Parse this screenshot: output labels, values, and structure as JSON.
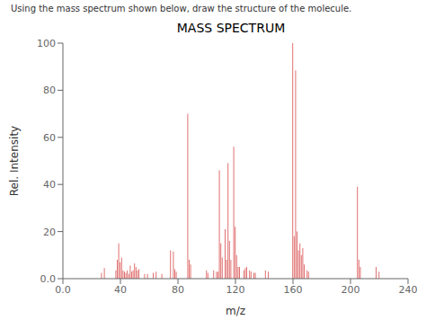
{
  "chart_data": {
    "type": "bar",
    "title": "MASS SPECTRUM",
    "subtitle": "Using the mass spectrum shown below, draw the structure of the molecule.",
    "xlabel": "m/z",
    "ylabel": "Rel. Intensity",
    "x": [
      27,
      29,
      37,
      38,
      39,
      40,
      41,
      42,
      43,
      44,
      45,
      46,
      47,
      48,
      49,
      50,
      51,
      52,
      53,
      57,
      59,
      63,
      65,
      69,
      75,
      77,
      78,
      79,
      87,
      88,
      89,
      100,
      101,
      105,
      107,
      108,
      109,
      110,
      111,
      113,
      114,
      115,
      116,
      117,
      119,
      120,
      121,
      122,
      123,
      126,
      127,
      128,
      130,
      131,
      133,
      134,
      141,
      143,
      160,
      161,
      162,
      163,
      164,
      165,
      166,
      167,
      168,
      170,
      171,
      205,
      206,
      207,
      218,
      220
    ],
    "values": [
      2.5,
      4.5,
      3.5,
      8.0,
      15.0,
      7.0,
      9.0,
      3.5,
      3.0,
      2.5,
      3.5,
      2.0,
      5.5,
      3.0,
      3.5,
      6.5,
      5.0,
      3.5,
      4.0,
      2.0,
      2.0,
      2.5,
      3.0,
      2.0,
      12.0,
      11.5,
      4.0,
      3.0,
      70.0,
      8.0,
      6.0,
      3.5,
      2.5,
      3.5,
      3.0,
      3.0,
      46.0,
      15.0,
      9.0,
      21.0,
      8.0,
      49.0,
      16.0,
      8.0,
      56.0,
      22.0,
      10.0,
      5.0,
      5.0,
      3.5,
      4.5,
      5.0,
      3.5,
      3.0,
      2.5,
      2.5,
      3.5,
      3.0,
      100.0,
      18.0,
      88.5,
      20.0,
      12.0,
      15.0,
      10.0,
      13.0,
      6.0,
      3.5,
      3.0,
      39.0,
      8.0,
      5.0,
      5.0,
      3.0
    ],
    "color": "#e07070",
    "xlim": [
      0,
      240
    ],
    "ylim": [
      0,
      100
    ],
    "xticks": [
      {
        "value": 0,
        "label": "0.0"
      },
      40,
      80,
      120,
      160,
      200,
      240
    ],
    "yticks": [
      {
        "value": 0,
        "label": "0.0"
      },
      20,
      40,
      60,
      80,
      100
    ],
    "grid": false
  }
}
